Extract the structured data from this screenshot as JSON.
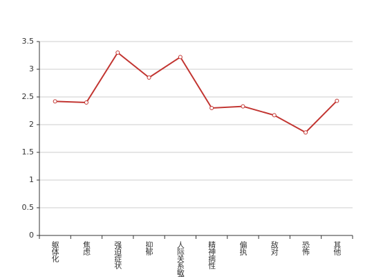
{
  "chart_data": {
    "type": "line",
    "categories": [
      "躯体化",
      "焦虑",
      "强迫症状",
      "抑郁",
      "人际关系敏感",
      "精神病性",
      "偏执",
      "敌对",
      "恐怖",
      "其他"
    ],
    "series": [
      {
        "color": "#c23531",
        "values": [
          2.42,
          2.4,
          3.3,
          2.85,
          3.22,
          2.3,
          2.33,
          2.17,
          1.86,
          2.43
        ]
      }
    ],
    "ylim": [
      0,
      3.5
    ],
    "yticks": [
      0,
      0.5,
      1,
      1.5,
      2,
      2.5,
      3,
      3.5
    ],
    "grid": true
  }
}
